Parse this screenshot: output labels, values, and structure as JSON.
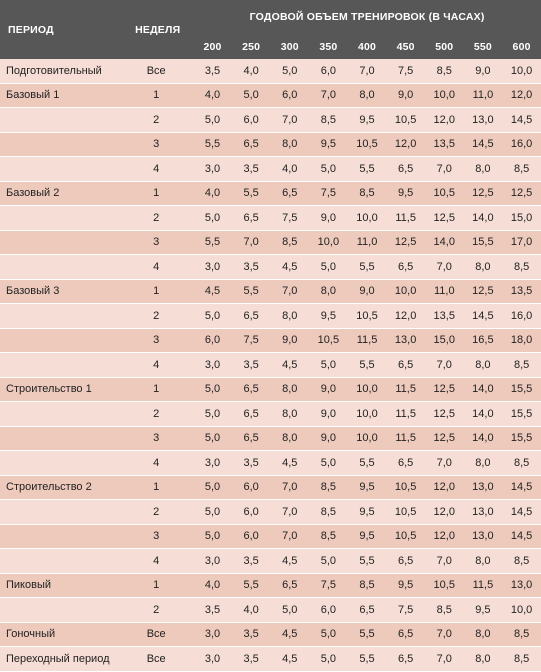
{
  "header": {
    "period": "ПЕРИОД",
    "week": "НЕДЕЛЯ",
    "volume": "ГОДОВОЙ ОБЪЕМ ТРЕНИРОВОК (В ЧАСАХ)",
    "hours": [
      "200",
      "250",
      "300",
      "350",
      "400",
      "450",
      "500",
      "550",
      "600"
    ]
  },
  "rows": [
    {
      "period": "Подготовительный",
      "week": "Все",
      "values": [
        "3,5",
        "4,0",
        "5,0",
        "6,0",
        "7,0",
        "7,5",
        "8,5",
        "9,0",
        "10,0"
      ]
    },
    {
      "period": "Базовый 1",
      "week": "1",
      "values": [
        "4,0",
        "5,0",
        "6,0",
        "7,0",
        "8,0",
        "9,0",
        "10,0",
        "11,0",
        "12,0"
      ]
    },
    {
      "period": "",
      "week": "2",
      "values": [
        "5,0",
        "6,0",
        "7,0",
        "8,5",
        "9,5",
        "10,5",
        "12,0",
        "13,0",
        "14,5"
      ]
    },
    {
      "period": "",
      "week": "3",
      "values": [
        "5,5",
        "6,5",
        "8,0",
        "9,5",
        "10,5",
        "12,0",
        "13,5",
        "14,5",
        "16,0"
      ]
    },
    {
      "period": "",
      "week": "4",
      "values": [
        "3,0",
        "3,5",
        "4,0",
        "5,0",
        "5,5",
        "6,5",
        "7,0",
        "8,0",
        "8,5"
      ]
    },
    {
      "period": "Базовый 2",
      "week": "1",
      "values": [
        "4,0",
        "5,5",
        "6,5",
        "7,5",
        "8,5",
        "9,5",
        "10,5",
        "12,5",
        "12,5"
      ]
    },
    {
      "period": "",
      "week": "2",
      "values": [
        "5,0",
        "6,5",
        "7,5",
        "9,0",
        "10,0",
        "11,5",
        "12,5",
        "14,0",
        "15,0"
      ]
    },
    {
      "period": "",
      "week": "3",
      "values": [
        "5,5",
        "7,0",
        "8,5",
        "10,0",
        "11,0",
        "12,5",
        "14,0",
        "15,5",
        "17,0"
      ]
    },
    {
      "period": "",
      "week": "4",
      "values": [
        "3,0",
        "3,5",
        "4,5",
        "5,0",
        "5,5",
        "6,5",
        "7,0",
        "8,0",
        "8,5"
      ]
    },
    {
      "period": "Базовый 3",
      "week": "1",
      "values": [
        "4,5",
        "5,5",
        "7,0",
        "8,0",
        "9,0",
        "10,0",
        "11,0",
        "12,5",
        "13,5"
      ]
    },
    {
      "period": "",
      "week": "2",
      "values": [
        "5,0",
        "6,5",
        "8,0",
        "9,5",
        "10,5",
        "12,0",
        "13,5",
        "14,5",
        "16,0"
      ]
    },
    {
      "period": "",
      "week": "3",
      "values": [
        "6,0",
        "7,5",
        "9,0",
        "10,5",
        "11,5",
        "13,0",
        "15,0",
        "16,5",
        "18,0"
      ]
    },
    {
      "period": "",
      "week": "4",
      "values": [
        "3,0",
        "3,5",
        "4,5",
        "5,0",
        "5,5",
        "6,5",
        "7,0",
        "8,0",
        "8,5"
      ]
    },
    {
      "period": "Строительство 1",
      "week": "1",
      "values": [
        "5,0",
        "6,5",
        "8,0",
        "9,0",
        "10,0",
        "11,5",
        "12,5",
        "14,0",
        "15,5"
      ]
    },
    {
      "period": "",
      "week": "2",
      "values": [
        "5,0",
        "6,5",
        "8,0",
        "9,0",
        "10,0",
        "11,5",
        "12,5",
        "14,0",
        "15,5"
      ]
    },
    {
      "period": "",
      "week": "3",
      "values": [
        "5,0",
        "6,5",
        "8,0",
        "9,0",
        "10,0",
        "11,5",
        "12,5",
        "14,0",
        "15,5"
      ]
    },
    {
      "period": "",
      "week": "4",
      "values": [
        "3,0",
        "3,5",
        "4,5",
        "5,0",
        "5,5",
        "6,5",
        "7,0",
        "8,0",
        "8,5"
      ]
    },
    {
      "period": "Строительство 2",
      "week": "1",
      "values": [
        "5,0",
        "6,0",
        "7,0",
        "8,5",
        "9,5",
        "10,5",
        "12,0",
        "13,0",
        "14,5"
      ]
    },
    {
      "period": "",
      "week": "2",
      "values": [
        "5,0",
        "6,0",
        "7,0",
        "8,5",
        "9,5",
        "10,5",
        "12,0",
        "13,0",
        "14,5"
      ]
    },
    {
      "period": "",
      "week": "3",
      "values": [
        "5,0",
        "6,0",
        "7,0",
        "8,5",
        "9,5",
        "10,5",
        "12,0",
        "13,0",
        "14,5"
      ]
    },
    {
      "period": "",
      "week": "4",
      "values": [
        "3,0",
        "3,5",
        "4,5",
        "5,0",
        "5,5",
        "6,5",
        "7,0",
        "8,0",
        "8,5"
      ]
    },
    {
      "period": "Пиковый",
      "week": "1",
      "values": [
        "4,0",
        "5,5",
        "6,5",
        "7,5",
        "8,5",
        "9,5",
        "10,5",
        "11,5",
        "13,0"
      ]
    },
    {
      "period": "",
      "week": "2",
      "values": [
        "3,5",
        "4,0",
        "5,0",
        "6,0",
        "6,5",
        "7,5",
        "8,5",
        "9,5",
        "10,0"
      ]
    },
    {
      "period": "Гоночный",
      "week": "Все",
      "values": [
        "3,0",
        "3,5",
        "4,5",
        "5,0",
        "5,5",
        "6,5",
        "7,0",
        "8,0",
        "8,5"
      ]
    },
    {
      "period": "Переходный период",
      "week": "Все",
      "values": [
        "3,0",
        "3,5",
        "4,5",
        "5,0",
        "5,5",
        "6,5",
        "7,0",
        "8,0",
        "8,5"
      ]
    }
  ],
  "colors": {
    "header_bg": "#575757",
    "row_light": "#f6ded6",
    "row_dark": "#eecabd"
  }
}
